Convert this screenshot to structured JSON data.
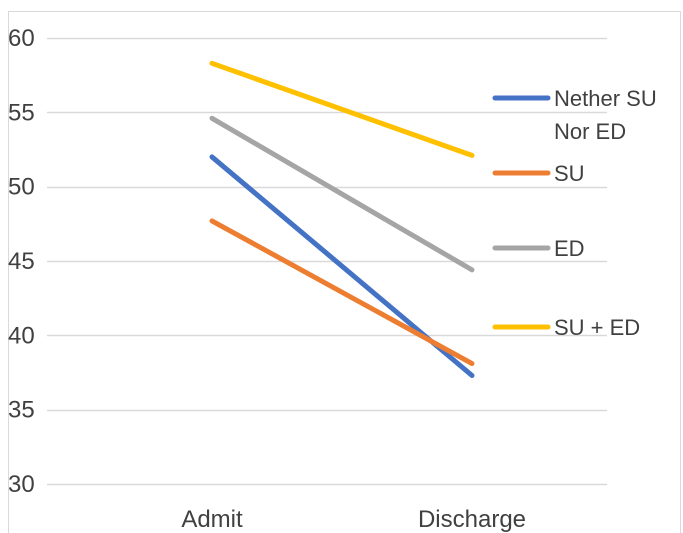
{
  "chart_data": {
    "type": "line",
    "title": "",
    "xlabel": "",
    "ylabel": "",
    "categories": [
      "Admit",
      "Discharge"
    ],
    "ylim": [
      30,
      60
    ],
    "yticks": [
      30,
      35,
      40,
      45,
      50,
      55,
      60
    ],
    "grid": true,
    "legend_position": "right",
    "series": [
      {
        "name": "Nether SU Nor ED",
        "name_lines": [
          "Nether SU",
          "Nor ED"
        ],
        "values": [
          52.0,
          37.3
        ],
        "color": "#4472C4"
      },
      {
        "name": "SU",
        "name_lines": [
          "SU"
        ],
        "values": [
          47.7,
          38.1
        ],
        "color": "#ED7D31"
      },
      {
        "name": "ED",
        "name_lines": [
          "ED"
        ],
        "values": [
          54.6,
          44.4
        ],
        "color": "#A5A5A5"
      },
      {
        "name": "SU + ED",
        "name_lines": [
          "SU + ED"
        ],
        "values": [
          58.3,
          52.1
        ],
        "color": "#FFC000"
      }
    ],
    "colors": {
      "gridline": "#D9D9D9",
      "axis_text": "#404040",
      "border": "#D9D9D9"
    }
  }
}
